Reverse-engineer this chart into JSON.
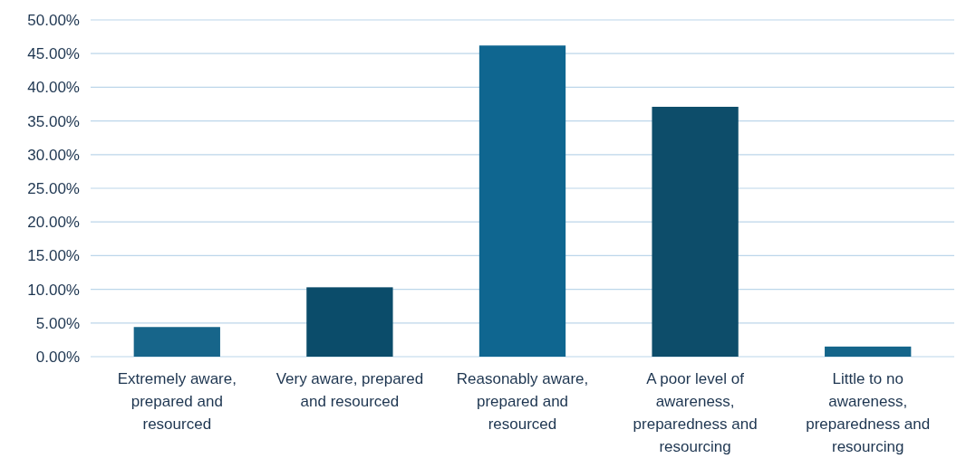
{
  "chart_data": {
    "type": "bar",
    "categories": [
      "Extremely aware, prepared and resourced",
      "Very aware, prepared and resourced",
      "Reasonably aware, prepared and resourced",
      "A poor level of awareness, preparedness and resourcing",
      "Little to no awareness, preparedness and resourcing"
    ],
    "values": [
      4.4,
      10.3,
      46.2,
      37.1,
      1.5
    ],
    "colors": [
      "#17658a",
      "#0b4c6a",
      "#0f6690",
      "#0d4d6a",
      "#14658a"
    ],
    "ylim": [
      0,
      50
    ],
    "yticks": [
      {
        "value": 0,
        "label": "0.00%"
      },
      {
        "value": 5,
        "label": "5.00%"
      },
      {
        "value": 10,
        "label": "10.00%"
      },
      {
        "value": 15,
        "label": "15.00%"
      },
      {
        "value": 20,
        "label": "20.00%"
      },
      {
        "value": 25,
        "label": "25.00%"
      },
      {
        "value": 30,
        "label": "30.00%"
      },
      {
        "value": 35,
        "label": "35.00%"
      },
      {
        "value": 40,
        "label": "40.00%"
      },
      {
        "value": 45,
        "label": "45.00%"
      },
      {
        "value": 50,
        "label": "50.00%"
      }
    ],
    "grid": "y"
  }
}
